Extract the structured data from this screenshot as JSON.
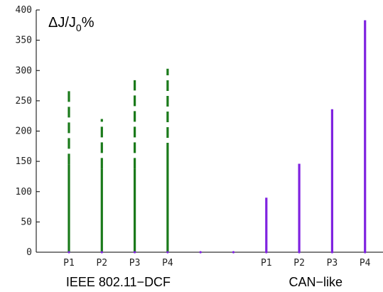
{
  "chart_data": {
    "type": "bar",
    "ylabel": "ΔJ/J0%",
    "ylim": [
      0,
      400
    ],
    "yticks": [
      0,
      50,
      100,
      150,
      200,
      250,
      300,
      350,
      400
    ],
    "x_positions": [
      1,
      2,
      3,
      4,
      5,
      6,
      7,
      8,
      9,
      10
    ],
    "x_tick_labels": [
      {
        "x": 1,
        "label": "P1"
      },
      {
        "x": 2,
        "label": "P2"
      },
      {
        "x": 3,
        "label": "P3"
      },
      {
        "x": 4,
        "label": "P4"
      },
      {
        "x": 7,
        "label": "P1"
      },
      {
        "x": 8,
        "label": "P2"
      },
      {
        "x": 9,
        "label": "P3"
      },
      {
        "x": 10,
        "label": "P4"
      }
    ],
    "groups": [
      {
        "label": "IEEE 802.11−DCF",
        "x_center": 2.5
      },
      {
        "label": "CAN−like",
        "x_center": 8.5
      }
    ],
    "series": [
      {
        "style": "solid",
        "color": "#1a7a1a",
        "points": [
          {
            "x": 1,
            "value": 145
          },
          {
            "x": 2,
            "value": 138
          },
          {
            "x": 3,
            "value": 138
          },
          {
            "x": 4,
            "value": 163
          }
        ]
      },
      {
        "style": "dashed",
        "color": "#1a7a1a",
        "points": [
          {
            "x": 1,
            "from": 145,
            "to": 266
          },
          {
            "x": 2,
            "from": 138,
            "to": 220
          },
          {
            "x": 3,
            "from": 138,
            "to": 284
          },
          {
            "x": 4,
            "from": 163,
            "to": 303
          }
        ]
      },
      {
        "style": "solid",
        "color": "#7f22e0",
        "points": [
          {
            "x": 7,
            "value": 90
          },
          {
            "x": 8,
            "value": 146
          },
          {
            "x": 9,
            "value": 236
          },
          {
            "x": 10,
            "value": 383
          }
        ]
      }
    ],
    "grid": false
  }
}
